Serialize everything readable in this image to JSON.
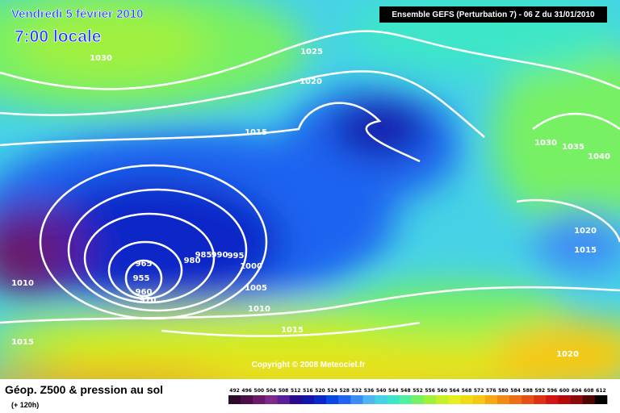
{
  "header": {
    "date": "Vendredi 5 février 2010",
    "time": "7:00 locale",
    "run": "Ensemble GEFS (Perturbation 7)  - 06 Z du 31/01/2010"
  },
  "map": {
    "isobar_labels": [
      1030,
      1025,
      1020,
      1015,
      1030,
      1035,
      1040,
      1020,
      1015,
      1010,
      1015,
      965,
      955,
      960,
      970,
      980,
      985,
      990,
      995,
      1000,
      1005,
      1010,
      1015,
      1020
    ],
    "copyright": "Copyright © 2008 Meteociel.fr"
  },
  "legend": {
    "title": "Géop. Z500 & pression au sol",
    "subtitle": "(+ 120h)",
    "levels": [
      492,
      496,
      500,
      504,
      508,
      512,
      516,
      520,
      524,
      528,
      532,
      536,
      540,
      544,
      548,
      552,
      556,
      560,
      564,
      568,
      572,
      576,
      580,
      584,
      588,
      592,
      596,
      600,
      604,
      608,
      612
    ],
    "colors": [
      "#2b0b2b",
      "#4b1048",
      "#6a1a66",
      "#7d2a8a",
      "#5a1e96",
      "#2a0a8c",
      "#1414a8",
      "#0a28c8",
      "#0a46e6",
      "#1e64f0",
      "#3c8cf5",
      "#50b4f0",
      "#46d2e6",
      "#3ce6c8",
      "#50f0a0",
      "#78f064",
      "#a0f03c",
      "#c8f028",
      "#e6f01e",
      "#f0dc14",
      "#f5c814",
      "#f5aa14",
      "#f08c14",
      "#eb6e14",
      "#e65014",
      "#dc3214",
      "#d21414",
      "#b40a0a",
      "#8c0a0a",
      "#500505",
      "#000000"
    ]
  }
}
